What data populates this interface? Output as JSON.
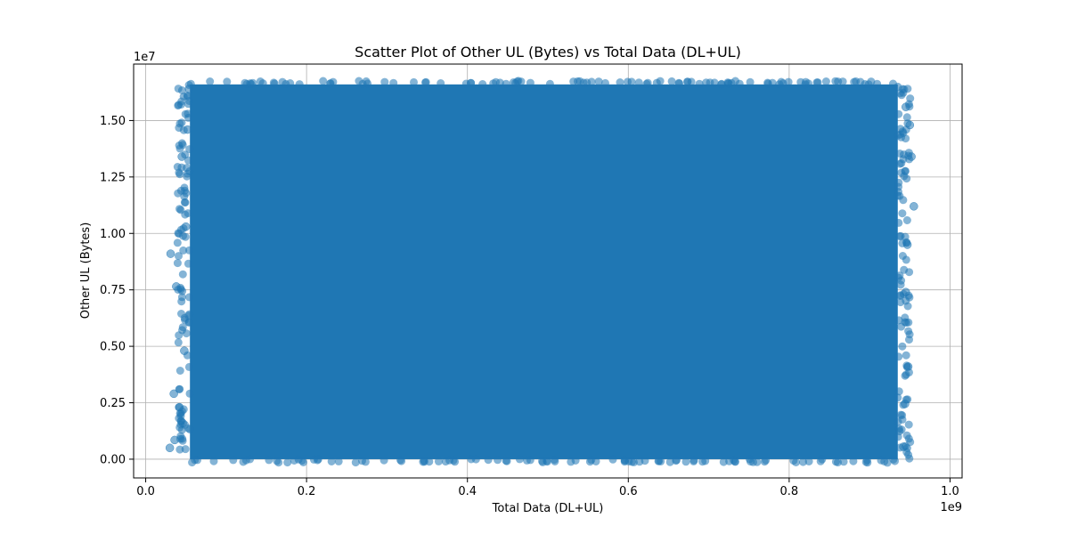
{
  "chart_data": {
    "type": "scatter",
    "title": "Scatter Plot of Other UL (Bytes) vs Total Data (DL+UL)",
    "xlabel": "Total Data (DL+UL)",
    "ylabel": "Other UL (Bytes)",
    "x_offset_label": "1e9",
    "y_offset_label": "1e7",
    "xlim": [
      -15000000,
      1015000000
    ],
    "ylim": [
      -830000,
      17500000
    ],
    "x_ticks": [
      0,
      200000000,
      400000000,
      600000000,
      800000000,
      1000000000
    ],
    "x_tick_labels": [
      "0.0",
      "0.2",
      "0.4",
      "0.6",
      "0.8",
      "1.0"
    ],
    "y_ticks": [
      0,
      2500000,
      5000000,
      7500000,
      10000000,
      12500000,
      15000000
    ],
    "y_tick_labels": [
      "0.00",
      "0.25",
      "0.50",
      "0.75",
      "1.00",
      "1.25",
      "1.50"
    ],
    "grid": true,
    "point_color": "#1f77b4",
    "point_alpha": 0.55,
    "dense_region": {
      "x_range": [
        55000000,
        935000000
      ],
      "y_range": [
        0,
        16600000
      ]
    },
    "sample_points": [
      {
        "x": 30000000,
        "y": 500000
      },
      {
        "x": 31000000,
        "y": 9100000
      },
      {
        "x": 35000000,
        "y": 2900000
      },
      {
        "x": 36000000,
        "y": 850000
      },
      {
        "x": 38000000,
        "y": 7650000
      },
      {
        "x": 42000000,
        "y": 2300000
      },
      {
        "x": 45000000,
        "y": 13400000
      },
      {
        "x": 46000000,
        "y": 1600000
      },
      {
        "x": 48000000,
        "y": 4800000
      },
      {
        "x": 50000000,
        "y": 10300000
      },
      {
        "x": 52000000,
        "y": 14600000
      },
      {
        "x": 54000000,
        "y": 16400000
      },
      {
        "x": 945000000,
        "y": 15600000
      },
      {
        "x": 950000000,
        "y": 14800000
      },
      {
        "x": 955000000,
        "y": 11200000
      },
      {
        "x": 945000000,
        "y": 7400000
      },
      {
        "x": 948000000,
        "y": 4100000
      },
      {
        "x": 944000000,
        "y": 2450000
      },
      {
        "x": 942000000,
        "y": 550000
      },
      {
        "x": 952000000,
        "y": 13400000
      },
      {
        "x": 947000000,
        "y": 9500000
      }
    ]
  }
}
